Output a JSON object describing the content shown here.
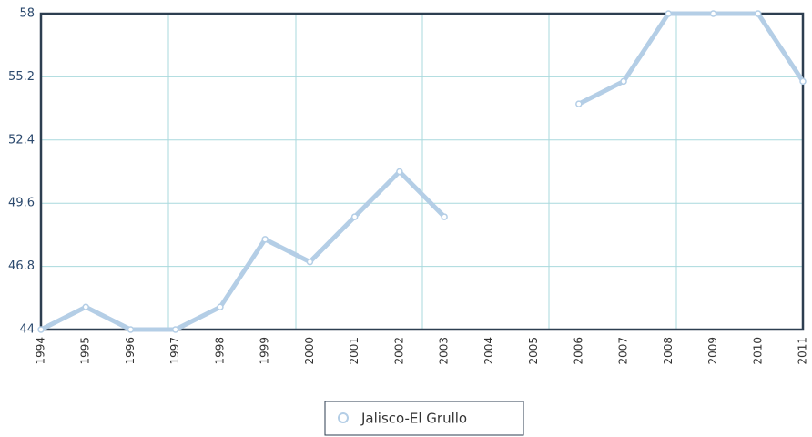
{
  "chart_data": {
    "type": "line",
    "categories": [
      "1994",
      "1995",
      "1996",
      "1997",
      "1998",
      "1999",
      "2000",
      "2001",
      "2002",
      "2003",
      "2004",
      "2005",
      "2006",
      "2007",
      "2008",
      "2009",
      "2010",
      "2011"
    ],
    "series": [
      {
        "name": "Jalisco-El Grullo",
        "color": "#b4cee6",
        "values": [
          44,
          45,
          44,
          44,
          45,
          48,
          47,
          49,
          51,
          49,
          null,
          null,
          54,
          55,
          58,
          58,
          58,
          55
        ]
      }
    ],
    "ylim": [
      44,
      58
    ],
    "yticks": [
      44,
      46.8,
      49.6,
      52.4,
      55.2,
      58
    ],
    "grid": true
  }
}
